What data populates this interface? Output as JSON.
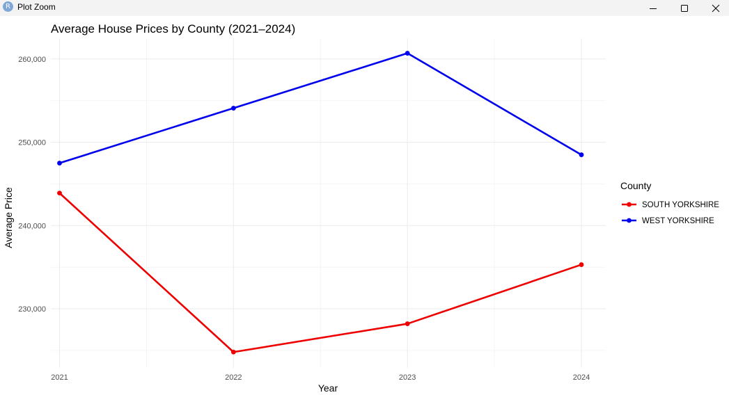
{
  "window": {
    "title": "Plot Zoom",
    "icon": "r-app-icon",
    "icon_letter": "R"
  },
  "chart_data": {
    "type": "line",
    "title": "Average House Prices by County (2021–2024)",
    "xlabel": "Year",
    "ylabel": "Average Price",
    "x": [
      2021,
      2022,
      2023,
      2024
    ],
    "x_tick_labels": [
      "2021",
      "2022",
      "2023",
      "2024"
    ],
    "xlim": [
      2020.95,
      2024.14
    ],
    "ylim": [
      222900,
      262500
    ],
    "y_ticks": [
      230000,
      240000,
      250000,
      260000
    ],
    "y_tick_labels": [
      "230,000",
      "240,000",
      "250,000",
      "260,000"
    ],
    "grid": true,
    "legend_title": "County",
    "legend_position": "right",
    "series": [
      {
        "name": "SOUTH YORKSHIRE",
        "color": "#ee0000",
        "values": [
          243900,
          224800,
          228200,
          235300
        ]
      },
      {
        "name": "WEST YORKSHIRE",
        "color": "#0000ee",
        "values": [
          247500,
          254100,
          260700,
          248500
        ]
      }
    ]
  }
}
